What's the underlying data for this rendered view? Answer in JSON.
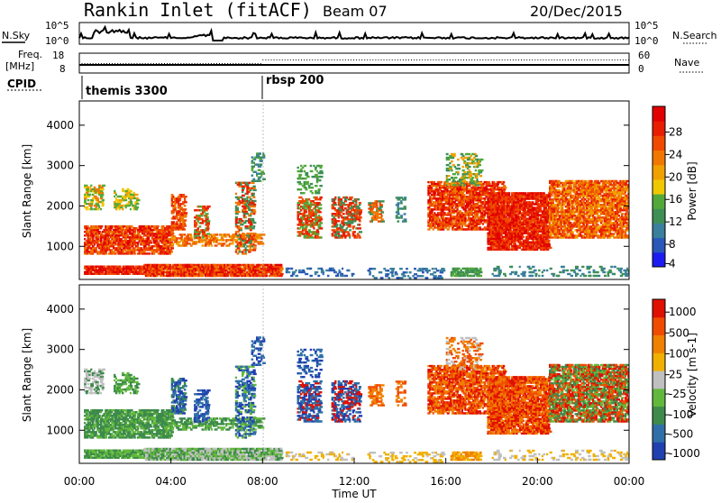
{
  "header": {
    "station": "Rankin Inlet (fitACF)",
    "beam": "Beam 07",
    "date": "20/Dec/2015"
  },
  "noise_panel": {
    "left_label": "N.Sky",
    "right_label": "N.Search",
    "left_ticks": [
      "10^5",
      "10^0"
    ],
    "right_ticks": [
      "10^5",
      "10^0"
    ]
  },
  "freq_panel": {
    "left_label_1": "Freq.",
    "left_label_2": "[MHz]",
    "right_label": "Nave",
    "left_ticks": [
      "18",
      "8"
    ],
    "right_ticks": [
      "60",
      "0"
    ]
  },
  "cpid": {
    "label": "CPID",
    "programs": [
      {
        "name": "themis 3300",
        "start_hour": 0
      },
      {
        "name": "rbsp 200",
        "start_hour": 8
      }
    ]
  },
  "chart_data": [
    {
      "type": "heatmap",
      "parameter": "Power",
      "ylabel": "Slant Range [km]",
      "xlim_hours": [
        0,
        24
      ],
      "ylim_km": [
        180,
        4600
      ],
      "yticks": [
        "1000",
        "2000",
        "3000",
        "4000"
      ],
      "colorbar": {
        "label": "Power [dB]",
        "ticks": [
          "28",
          "24",
          "20",
          "16",
          "12",
          "8",
          "4"
        ],
        "colors": [
          "#1c1cf0",
          "#2a58b8",
          "#3a7f9c",
          "#3e8f56",
          "#52a93a",
          "#f0c800",
          "#f0a000",
          "#f07800",
          "#f04a00",
          "#e81e00",
          "#e00000"
        ]
      }
    },
    {
      "type": "heatmap",
      "parameter": "Velocity",
      "xlabel": "Time UT",
      "ylabel": "Slant Range [km]",
      "xlim_hours": [
        0,
        24
      ],
      "ylim_km": [
        180,
        4600
      ],
      "yticks": [
        "1000",
        "2000",
        "3000",
        "4000"
      ],
      "xticks": [
        "00:00",
        "04:00",
        "08:00",
        "12:00",
        "16:00",
        "20:00",
        "00:00"
      ],
      "colorbar": {
        "label": "Velocity [m s-1]",
        "ticks": [
          "1000",
          "500",
          "100",
          "25",
          "-25",
          "-100",
          "-500",
          "-1000"
        ],
        "colors": [
          "#2040b0",
          "#2f6fa8",
          "#3d8a4c",
          "#62b83c",
          "#c0c0c0",
          "#f0b000",
          "#f08000",
          "#f04c00",
          "#e01000"
        ]
      }
    }
  ],
  "colors": {
    "axis": "#000000"
  }
}
